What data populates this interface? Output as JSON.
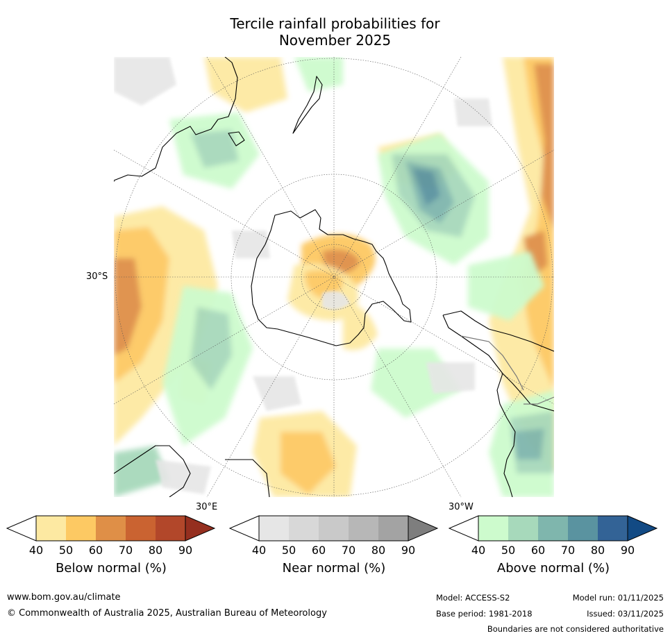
{
  "title_line1": "Tercile rainfall probabilities for",
  "title_line2": "November 2025",
  "map": {
    "lat_label": "30°S",
    "lon_label_east": "30°E",
    "lon_label_west": "30°W"
  },
  "colorbars": [
    {
      "label": "Below normal (%)",
      "ticks": [
        "40",
        "50",
        "60",
        "70",
        "80",
        "90"
      ],
      "colors": [
        "#ffffff",
        "#fde9a2",
        "#fdc963",
        "#df8f47",
        "#ca6331",
        "#b2472a",
        "#952f1f"
      ]
    },
    {
      "label": "Near normal (%)",
      "ticks": [
        "40",
        "50",
        "60",
        "70",
        "80",
        "90"
      ],
      "colors": [
        "#ffffff",
        "#e6e6e6",
        "#d8d8d8",
        "#c9c9c9",
        "#b7b7b7",
        "#a3a3a3",
        "#7e7e7e"
      ]
    },
    {
      "label": "Above normal (%)",
      "ticks": [
        "40",
        "50",
        "60",
        "70",
        "80",
        "90"
      ],
      "colors": [
        "#ffffff",
        "#cdfbcd",
        "#a7d9bb",
        "#7fb6ad",
        "#5a93a0",
        "#336396",
        "#124a84"
      ]
    }
  ],
  "footer": {
    "url": "www.bom.gov.au/climate",
    "copyright": "© Commonwealth of Australia 2025, Australian Bureau of Meteorology",
    "model": "Model: ACCESS-S2",
    "base_period": "Base period: 1981-2018",
    "model_run": "Model run: 01/11/2025",
    "issued": "Issued: 03/11/2025",
    "disclaimer": "Boundaries are not considered authoritative"
  }
}
